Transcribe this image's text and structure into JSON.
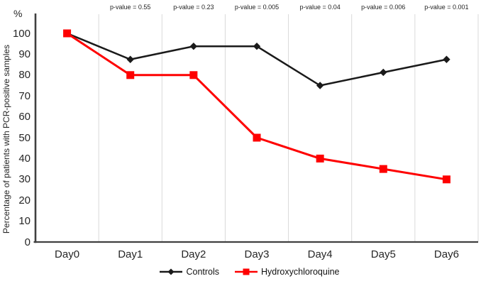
{
  "chart_data": {
    "type": "line",
    "title": "",
    "categories": [
      "Day0",
      "Day1",
      "Day2",
      "Day3",
      "Day4",
      "Day5",
      "Day6"
    ],
    "series": [
      {
        "name": "Controls",
        "color": "#1a1a1a",
        "marker": "diamond",
        "values": [
          100,
          87.5,
          93.8,
          93.8,
          75,
          81.3,
          87.5
        ]
      },
      {
        "name": "Hydroxychloroquine",
        "color": "#fe0000",
        "marker": "square",
        "values": [
          100,
          80,
          80,
          50,
          40,
          35,
          30
        ]
      }
    ],
    "p_values": [
      {
        "day": "Day1",
        "label": "p-value = 0.55"
      },
      {
        "day": "Day2",
        "label": "p-value = 0.23"
      },
      {
        "day": "Day3",
        "label": "p-value = 0.005"
      },
      {
        "day": "Day4",
        "label": "p-value = 0.04"
      },
      {
        "day": "Day5",
        "label": "p-value = 0.006"
      },
      {
        "day": "Day6",
        "label": "p-value = 0.001"
      }
    ],
    "xlabel": "",
    "ylabel": "Percentage of patients with PCR-positive samples",
    "y_unit": "%",
    "ylim": [
      0,
      100
    ],
    "yticks": [
      0,
      10,
      20,
      30,
      40,
      50,
      60,
      70,
      80,
      90,
      100
    ],
    "grid": "vertical-category-boundaries",
    "legend_position": "bottom"
  },
  "colors": {
    "controls": "#1a1a1a",
    "hydroxychloroquine": "#fe0000",
    "axis": "#404040",
    "gridline": "#d9d9d9",
    "text": "#262626",
    "background": "#ffffff"
  }
}
